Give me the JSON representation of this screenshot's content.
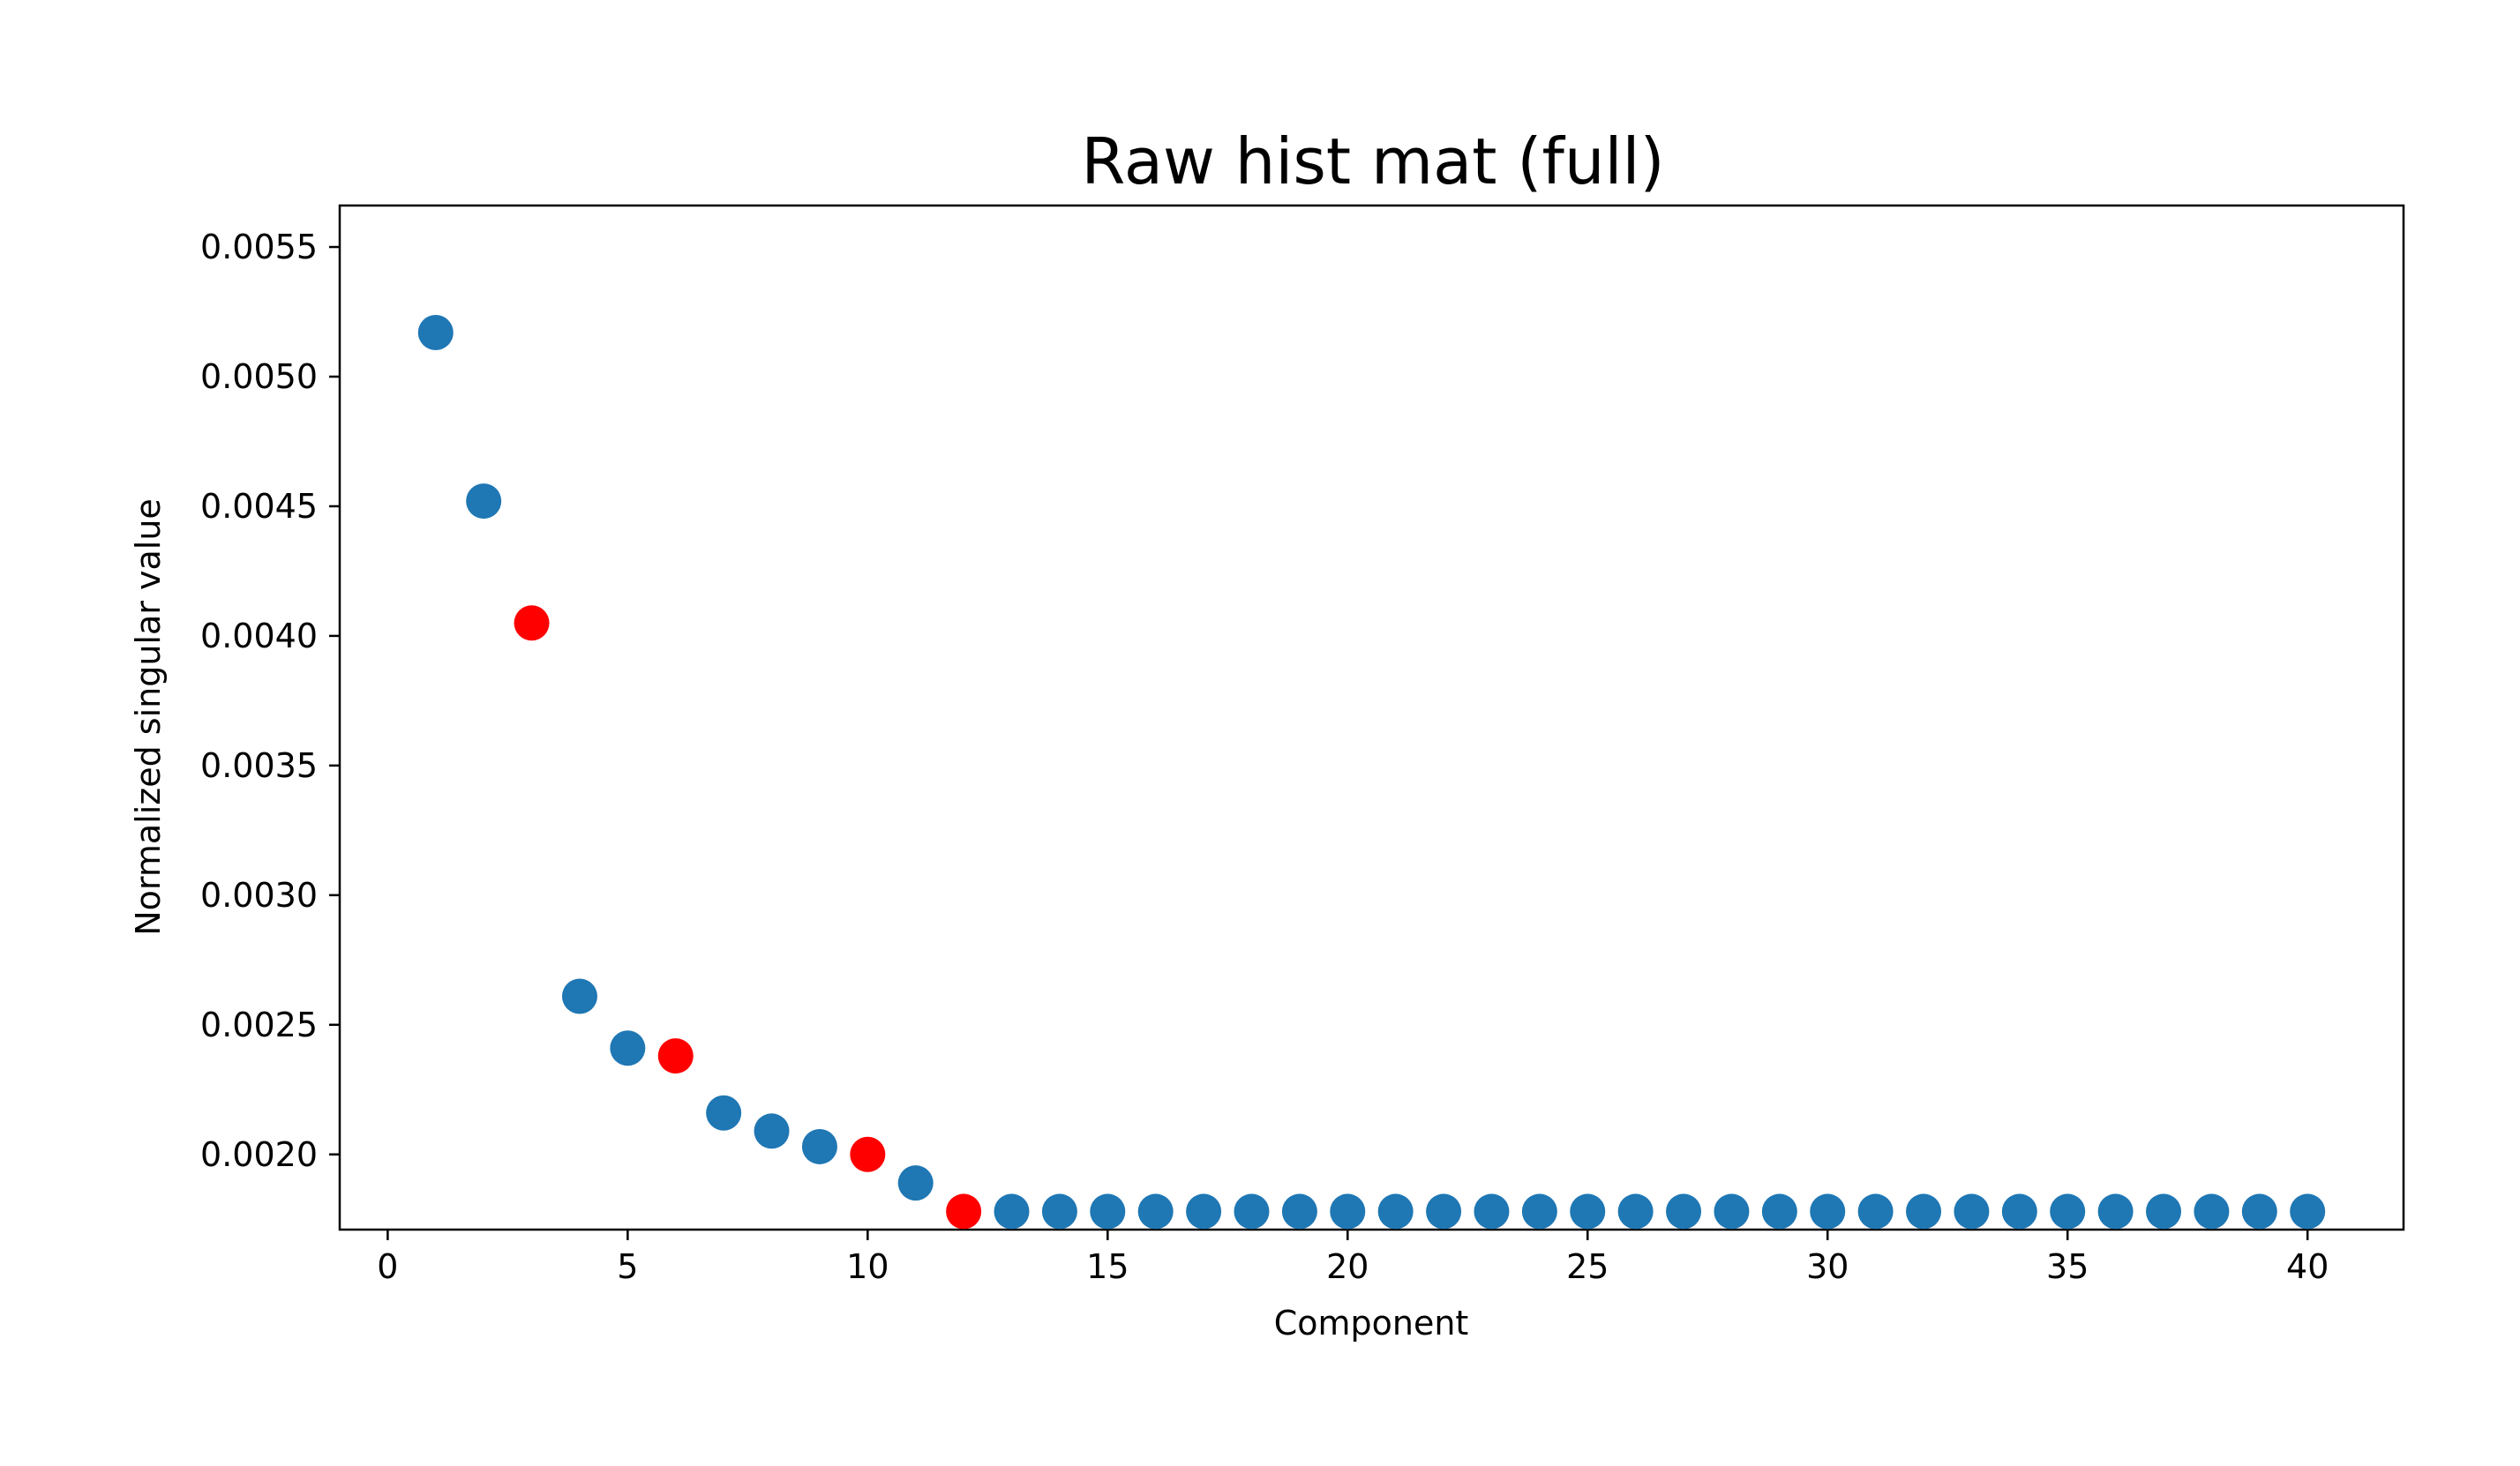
{
  "chart_data": {
    "type": "scatter",
    "title": "Raw hist mat (full)",
    "xlabel": "Component",
    "ylabel": "Normalized singular value",
    "xlim": [
      -1,
      42
    ],
    "ylim": [
      0.00171,
      0.00566
    ],
    "xticks": [
      0,
      5,
      10,
      15,
      20,
      25,
      30,
      35,
      40
    ],
    "xtick_labels": [
      "0",
      "5",
      "10",
      "15",
      "20",
      "25",
      "30",
      "35",
      "40"
    ],
    "yticks": [
      0.002,
      0.0025,
      0.003,
      0.0035,
      0.004,
      0.0045,
      0.005,
      0.0055
    ],
    "ytick_labels": [
      "0.0020",
      "0.0025",
      "0.0030",
      "0.0035",
      "0.0040",
      "0.0045",
      "0.0050",
      "0.0055"
    ],
    "grid": false,
    "colors": {
      "default": "#1f77b4",
      "highlight": "#ff0000"
    },
    "points": [
      {
        "x": 1,
        "y": 0.00517,
        "highlight": false
      },
      {
        "x": 2,
        "y": 0.00452,
        "highlight": false
      },
      {
        "x": 3,
        "y": 0.00405,
        "highlight": true
      },
      {
        "x": 4,
        "y": 0.00261,
        "highlight": false
      },
      {
        "x": 5,
        "y": 0.00241,
        "highlight": false
      },
      {
        "x": 6,
        "y": 0.00238,
        "highlight": true
      },
      {
        "x": 7,
        "y": 0.00216,
        "highlight": false
      },
      {
        "x": 8,
        "y": 0.00209,
        "highlight": false
      },
      {
        "x": 9,
        "y": 0.00203,
        "highlight": false
      },
      {
        "x": 10,
        "y": 0.002,
        "highlight": true
      },
      {
        "x": 11,
        "y": 0.00189,
        "highlight": false
      },
      {
        "x": 12,
        "y": 0.00178,
        "highlight": true
      },
      {
        "x": 13,
        "y": 0.00178,
        "highlight": false
      },
      {
        "x": 14,
        "y": 0.00178,
        "highlight": false
      },
      {
        "x": 15,
        "y": 0.00178,
        "highlight": false
      },
      {
        "x": 16,
        "y": 0.00178,
        "highlight": false
      },
      {
        "x": 17,
        "y": 0.00178,
        "highlight": false
      },
      {
        "x": 18,
        "y": 0.00178,
        "highlight": false
      },
      {
        "x": 19,
        "y": 0.00178,
        "highlight": false
      },
      {
        "x": 20,
        "y": 0.00178,
        "highlight": false
      },
      {
        "x": 21,
        "y": 0.00178,
        "highlight": false
      },
      {
        "x": 22,
        "y": 0.00178,
        "highlight": false
      },
      {
        "x": 23,
        "y": 0.00178,
        "highlight": false
      },
      {
        "x": 24,
        "y": 0.00178,
        "highlight": false
      },
      {
        "x": 25,
        "y": 0.00178,
        "highlight": false
      },
      {
        "x": 26,
        "y": 0.00178,
        "highlight": false
      },
      {
        "x": 27,
        "y": 0.00178,
        "highlight": false
      },
      {
        "x": 28,
        "y": 0.00178,
        "highlight": false
      },
      {
        "x": 29,
        "y": 0.00178,
        "highlight": false
      },
      {
        "x": 30,
        "y": 0.00178,
        "highlight": false
      },
      {
        "x": 31,
        "y": 0.00178,
        "highlight": false
      },
      {
        "x": 32,
        "y": 0.00178,
        "highlight": false
      },
      {
        "x": 33,
        "y": 0.00178,
        "highlight": false
      },
      {
        "x": 34,
        "y": 0.00178,
        "highlight": false
      },
      {
        "x": 35,
        "y": 0.00178,
        "highlight": false
      },
      {
        "x": 36,
        "y": 0.00178,
        "highlight": false
      },
      {
        "x": 37,
        "y": 0.00178,
        "highlight": false
      },
      {
        "x": 38,
        "y": 0.00178,
        "highlight": false
      },
      {
        "x": 39,
        "y": 0.00178,
        "highlight": false
      },
      {
        "x": 40,
        "y": 0.00178,
        "highlight": false
      }
    ]
  }
}
